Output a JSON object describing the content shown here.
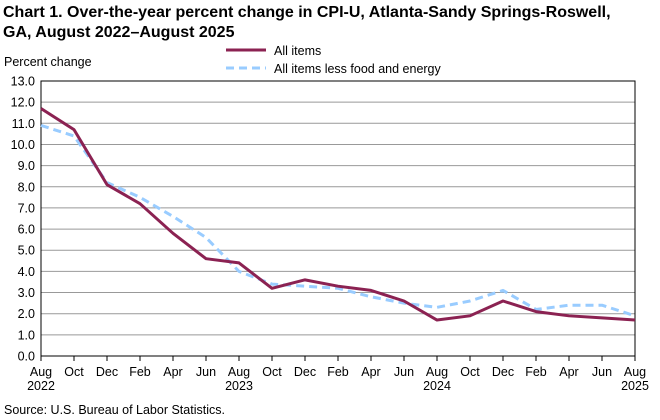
{
  "header": {
    "title_line1": "Chart 1. Over-the-year percent change in CPI-U, Atlanta-Sandy Springs-Roswell,",
    "title_line2": "GA, August 2022–August 2025"
  },
  "footer": {
    "source": "Source: U.S. Bureau of Labor Statistics."
  },
  "colors": {
    "all_items": "#8B2252",
    "core": "#99CCFF",
    "grid": "#999999"
  },
  "chart_data": {
    "type": "line",
    "title": "Over-the-year percent change in CPI-U, Atlanta-Sandy Springs-Roswell, GA, August 2022–August 2025",
    "ylabel": "Percent change",
    "xlabel": "",
    "ylim": [
      0,
      13
    ],
    "yticks": [
      "0.0",
      "1.0",
      "2.0",
      "3.0",
      "4.0",
      "5.0",
      "6.0",
      "7.0",
      "8.0",
      "9.0",
      "10.0",
      "11.0",
      "12.0",
      "13.0"
    ],
    "grid": true,
    "legend_position": "top",
    "x_tick_labels": [
      "Aug",
      "Oct",
      "Dec",
      "Feb",
      "Apr",
      "Jun",
      "Aug",
      "Oct",
      "Dec",
      "Feb",
      "Apr",
      "Jun",
      "Aug",
      "Oct",
      "Dec",
      "Feb",
      "Apr",
      "Jun",
      "Aug"
    ],
    "year_labels": [
      {
        "label": "2022",
        "tick_index": 0
      },
      {
        "label": "2023",
        "tick_index": 6
      },
      {
        "label": "2024",
        "tick_index": 12
      },
      {
        "label": "2025",
        "tick_index": 18
      }
    ],
    "series": [
      {
        "name": "All items",
        "style": "solid",
        "values": [
          11.7,
          10.7,
          8.1,
          7.2,
          5.8,
          4.6,
          4.4,
          3.2,
          3.6,
          3.3,
          3.1,
          2.6,
          1.7,
          1.9,
          2.6,
          2.1,
          1.9,
          1.8,
          1.7
        ]
      },
      {
        "name": "All items less food and energy",
        "style": "dashed",
        "values": [
          10.9,
          10.4,
          8.2,
          7.5,
          6.6,
          5.6,
          4.0,
          3.4,
          3.3,
          3.2,
          2.8,
          2.5,
          2.3,
          2.6,
          3.1,
          2.2,
          2.4,
          2.4,
          1.9
        ]
      }
    ]
  }
}
